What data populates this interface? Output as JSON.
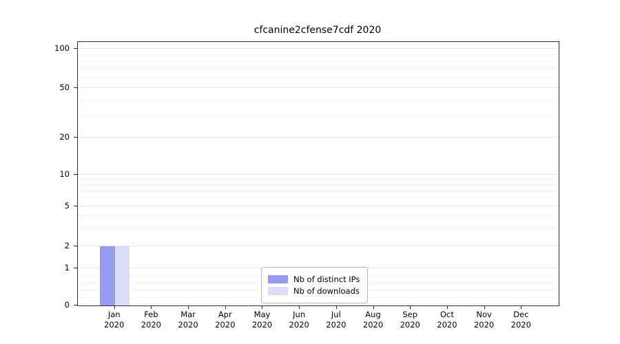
{
  "chart_data": {
    "type": "bar",
    "title": "cfcanine2cfense7cdf 2020",
    "categories": [
      "Jan",
      "Feb",
      "Mar",
      "Apr",
      "May",
      "Jun",
      "Jul",
      "Aug",
      "Sep",
      "Oct",
      "Nov",
      "Dec"
    ],
    "year_label": "2020",
    "series": [
      {
        "name": "Nb of distinct IPs",
        "color": "#9999ee",
        "values": [
          2,
          0,
          0,
          0,
          0,
          0,
          0,
          0,
          0,
          0,
          0,
          0
        ]
      },
      {
        "name": "Nb of downloads",
        "color": "#dcdcf8",
        "values": [
          2,
          0,
          0,
          0,
          0,
          0,
          0,
          0,
          0,
          0,
          0,
          0
        ]
      }
    ],
    "y_axis": {
      "scale": "symlog",
      "ticks": [
        0,
        1,
        2,
        5,
        10,
        20,
        50,
        100
      ],
      "minor_ticks": [
        0.2,
        0.4,
        0.6,
        0.8,
        3,
        4,
        6,
        7,
        8,
        9,
        30,
        40,
        60,
        70,
        80,
        90
      ],
      "range": [
        0,
        115
      ]
    },
    "x_axis": {
      "tick_line1": [
        "Jan",
        "Feb",
        "Mar",
        "Apr",
        "May",
        "Jun",
        "Jul",
        "Aug",
        "Sep",
        "Oct",
        "Nov",
        "Dec"
      ],
      "tick_line2": "2020"
    },
    "legend": {
      "position": "lower center",
      "entries": [
        "Nb of distinct IPs",
        "Nb of downloads"
      ]
    },
    "grid": {
      "horizontal_major": true,
      "horizontal_minor": true
    }
  }
}
